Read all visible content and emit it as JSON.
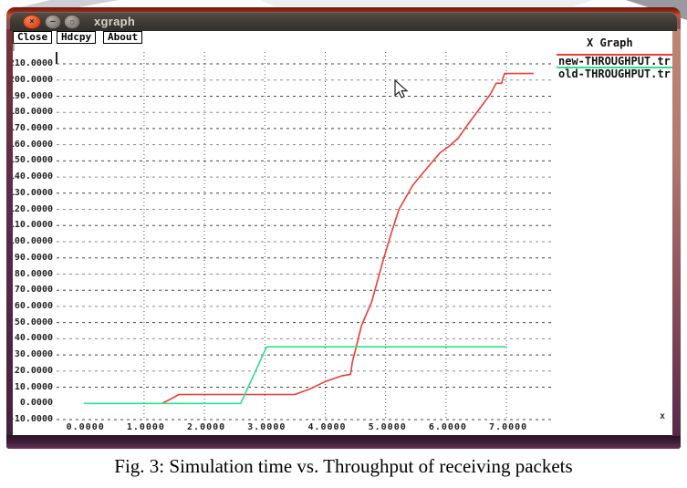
{
  "window": {
    "title": "xgraph"
  },
  "window_controls": {
    "close_glyph": "×",
    "minimize_glyph": "–",
    "maximize_glyph": "▢"
  },
  "toolbar": {
    "close": "Close",
    "hdcpy": "Hdcpy",
    "about": "About"
  },
  "graph": {
    "title": "X Graph",
    "x_unit_label": "x"
  },
  "legend": {
    "items": [
      {
        "label": "new-THROUGHPUT.tr",
        "color": "#ef3b36"
      },
      {
        "label": "old-THROUGHPUT.tr",
        "color": "#2ee08b"
      }
    ]
  },
  "chart_data": {
    "type": "line",
    "title": "X Graph",
    "xlabel": "",
    "ylabel": "",
    "x_unit_label": "x",
    "xlim": [
      0,
      7.5
    ],
    "ylim": [
      -10,
      210
    ],
    "xticks": [
      0,
      1,
      2,
      3,
      4,
      5,
      6,
      7
    ],
    "ytick_step": 10,
    "tick_decimals": 4,
    "grid": true,
    "legend_position": "top-right",
    "series": [
      {
        "name": "new-THROUGHPUT.tr",
        "color": "#ef3b36",
        "points": [
          [
            1.3,
            0
          ],
          [
            1.58,
            5.5
          ],
          [
            3.5,
            5.5
          ],
          [
            3.75,
            9
          ],
          [
            4.0,
            13.5
          ],
          [
            4.27,
            17
          ],
          [
            4.42,
            18
          ],
          [
            4.45,
            26
          ],
          [
            4.5,
            33
          ],
          [
            4.6,
            48
          ],
          [
            4.77,
            63
          ],
          [
            4.97,
            90
          ],
          [
            5.1,
            106
          ],
          [
            5.22,
            120
          ],
          [
            5.45,
            135
          ],
          [
            5.65,
            144
          ],
          [
            5.9,
            155
          ],
          [
            6.05,
            159
          ],
          [
            6.2,
            164
          ],
          [
            6.35,
            172
          ],
          [
            6.55,
            182
          ],
          [
            6.73,
            191
          ],
          [
            6.8,
            196
          ],
          [
            6.83,
            198
          ],
          [
            6.92,
            198
          ],
          [
            6.94,
            201
          ],
          [
            6.97,
            204
          ],
          [
            7.45,
            204
          ]
        ]
      },
      {
        "name": "old-THROUGHPUT.tr",
        "color": "#2ee08b",
        "points": [
          [
            0.0,
            0
          ],
          [
            2.6,
            0
          ],
          [
            3.03,
            35
          ],
          [
            7.0,
            35
          ]
        ]
      }
    ]
  },
  "caption": "Fig. 3: Simulation time vs. Throughput of receiving packets",
  "colors": {
    "frame_maroon": "#5f2e4c",
    "titlebar": "#3e3a34",
    "close_button_orange": "#e1542c",
    "series_new_red": "#ef3b36",
    "series_old_green": "#2ee08b",
    "gridline_gray": "#5d5d5d"
  }
}
